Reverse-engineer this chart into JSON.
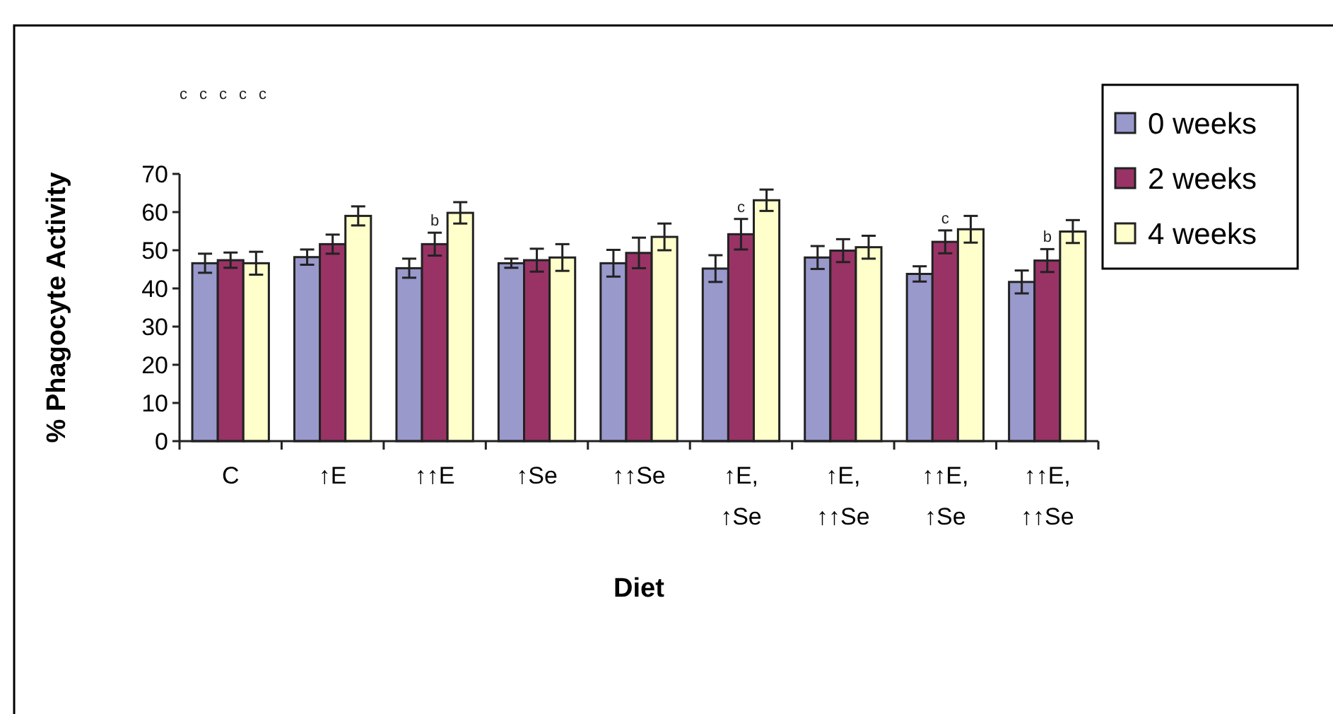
{
  "chart_data": {
    "type": "bar",
    "xlabel": "Diet",
    "ylabel": "% Phagocyte Activity",
    "categories": [
      "C",
      "↑E",
      "↑↑E",
      "↑Se",
      "↑↑Se",
      "↑E,\n↑Se",
      "↑E,\n↑↑Se",
      "↑↑E,\n↑Se",
      "↑↑E,\n↑↑Se"
    ],
    "series": [
      {
        "name": "0 weeks",
        "color": "#9999cc",
        "values": [
          46.6,
          48.2,
          45.3,
          46.6,
          46.6,
          45.2,
          48.1,
          43.8,
          41.7
        ],
        "errors": [
          2.5,
          2,
          2.5,
          1.2,
          3.5,
          3.5,
          3,
          2,
          3
        ]
      },
      {
        "name": "2 weeks",
        "color": "#993366",
        "values": [
          47.4,
          51.6,
          51.6,
          47.4,
          49.3,
          54.2,
          49.9,
          52.2,
          47.3
        ],
        "errors": [
          2,
          2.5,
          3,
          3,
          4,
          4,
          3,
          3,
          3
        ]
      },
      {
        "name": "4 weeks",
        "color": "#ffffcc",
        "values": [
          46.6,
          59.0,
          59.8,
          48.1,
          53.5,
          63.1,
          50.8,
          55.5,
          54.9
        ],
        "errors": [
          3,
          2.5,
          2.8,
          3.5,
          3.5,
          2.8,
          3,
          3.5,
          3
        ]
      }
    ],
    "annotations": [
      "c",
      {
        "text": "b",
        "x": "↑↑E",
        "y": 54.6
      },
      "c",
      {
        "text": "c",
        "x": "↑E,\n↑Se",
        "y": 58.2
      },
      "c",
      {
        "text": "c",
        "x": "↑↑E,\n↑Se",
        "y": 55.2
      },
      "c",
      {
        "text": "b",
        "x": "↑↑E,\n↑↑Se",
        "y": 50.3
      },
      "c"
    ],
    "ylim": [
      0,
      70
    ],
    "yticks": [
      0,
      10,
      20,
      30,
      40,
      50,
      60,
      70
    ],
    "grid": false,
    "legend": "top right"
  }
}
